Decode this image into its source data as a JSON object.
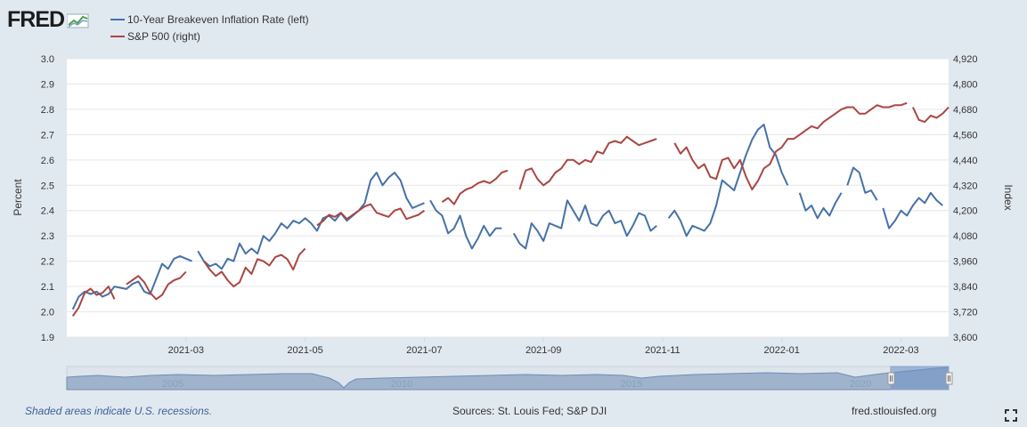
{
  "logo": {
    "text": "FRED"
  },
  "footer": {
    "recession_note": "Shaded areas indicate U.S. recessions.",
    "sources": "Sources: St. Louis Fed; S&P DJI",
    "site": "fred.stlouisfed.org"
  },
  "chart_data": {
    "type": "line",
    "title": "",
    "xlabel": "",
    "ylabel_left": "Percent",
    "ylabel_right": "Index",
    "x_tick_labels": [
      "2021-03",
      "2021-05",
      "2021-07",
      "2021-09",
      "2021-11",
      "2022-01",
      "2022-03"
    ],
    "x_tick_months": [
      2,
      4,
      6,
      8,
      10,
      12,
      14
    ],
    "x_range_months": [
      0,
      14.8
    ],
    "y_left": {
      "ticks": [
        "3.0",
        "2.9",
        "2.8",
        "2.7",
        "2.6",
        "2.5",
        "2.4",
        "2.3",
        "2.2",
        "2.1",
        "2.0",
        "1.9"
      ],
      "range": [
        1.9,
        3.0
      ]
    },
    "y_right": {
      "ticks": [
        "4,920",
        "4,800",
        "4,680",
        "4,560",
        "4,440",
        "4,320",
        "4,200",
        "4,080",
        "3,960",
        "3,840",
        "3,720",
        "3,600"
      ],
      "range": [
        3600,
        4920
      ]
    },
    "grid": true,
    "legend_position": "top-left",
    "colors": {
      "breakeven": "#4572a7",
      "sp500": "#aa4643"
    },
    "navigator": {
      "labels": [
        "2005",
        "2010",
        "2015",
        "2020"
      ]
    },
    "series": [
      {
        "name": "10-Year Breakeven Inflation Rate (left)",
        "axis": "left",
        "points": [
          [
            0.1,
            2.01
          ],
          [
            0.2,
            2.06
          ],
          [
            0.3,
            2.08
          ],
          [
            0.4,
            2.07
          ],
          [
            0.5,
            2.08
          ],
          [
            0.6,
            2.06
          ],
          [
            0.7,
            2.07
          ],
          [
            0.8,
            2.1
          ],
          [
            1.0,
            2.09
          ],
          [
            1.1,
            2.11
          ],
          [
            1.2,
            2.12
          ],
          [
            1.3,
            2.08
          ],
          [
            1.4,
            2.07
          ],
          [
            1.5,
            2.13
          ],
          [
            1.6,
            2.19
          ],
          [
            1.7,
            2.17
          ],
          [
            1.8,
            2.21
          ],
          [
            1.9,
            2.22
          ],
          [
            2.0,
            2.21
          ],
          [
            2.1,
            2.2
          ],
          null,
          [
            2.2,
            2.24
          ],
          [
            2.3,
            2.2
          ],
          [
            2.4,
            2.18
          ],
          [
            2.5,
            2.19
          ],
          [
            2.6,
            2.17
          ],
          [
            2.7,
            2.21
          ],
          [
            2.8,
            2.2
          ],
          [
            2.9,
            2.27
          ],
          [
            3.0,
            2.23
          ],
          [
            3.1,
            2.25
          ],
          [
            3.2,
            2.23
          ],
          [
            3.3,
            2.3
          ],
          [
            3.4,
            2.28
          ],
          [
            3.5,
            2.31
          ],
          [
            3.6,
            2.35
          ],
          [
            3.7,
            2.33
          ],
          [
            3.8,
            2.36
          ],
          [
            3.9,
            2.35
          ],
          [
            4.0,
            2.37
          ],
          [
            4.1,
            2.35
          ],
          [
            4.2,
            2.32
          ],
          [
            4.3,
            2.37
          ],
          [
            4.4,
            2.38
          ],
          [
            4.5,
            2.36
          ],
          [
            4.6,
            2.39
          ],
          [
            4.7,
            2.36
          ],
          [
            4.8,
            2.38
          ],
          [
            4.9,
            2.4
          ],
          [
            5.0,
            2.43
          ],
          [
            5.1,
            2.52
          ],
          [
            5.2,
            2.55
          ],
          [
            5.3,
            2.5
          ],
          [
            5.4,
            2.53
          ],
          [
            5.5,
            2.55
          ],
          [
            5.6,
            2.52
          ],
          [
            5.7,
            2.45
          ],
          [
            5.8,
            2.41
          ],
          [
            5.9,
            2.42
          ],
          [
            6.0,
            2.43
          ],
          null,
          [
            6.1,
            2.44
          ],
          [
            6.2,
            2.4
          ],
          [
            6.3,
            2.38
          ],
          [
            6.4,
            2.31
          ],
          [
            6.5,
            2.33
          ],
          [
            6.6,
            2.38
          ],
          [
            6.7,
            2.3
          ],
          [
            6.8,
            2.25
          ],
          [
            6.9,
            2.29
          ],
          [
            7.0,
            2.34
          ],
          [
            7.1,
            2.3
          ],
          [
            7.2,
            2.33
          ],
          [
            7.3,
            2.33
          ],
          null,
          [
            7.5,
            2.31
          ],
          [
            7.6,
            2.27
          ],
          [
            7.7,
            2.25
          ],
          [
            7.8,
            2.35
          ],
          [
            7.9,
            2.32
          ],
          [
            8.0,
            2.28
          ],
          [
            8.1,
            2.35
          ],
          [
            8.2,
            2.34
          ],
          [
            8.3,
            2.33
          ],
          [
            8.4,
            2.44
          ],
          [
            8.5,
            2.4
          ],
          [
            8.6,
            2.36
          ],
          [
            8.7,
            2.42
          ],
          [
            8.8,
            2.35
          ],
          [
            8.9,
            2.34
          ],
          [
            9.0,
            2.38
          ],
          [
            9.1,
            2.4
          ],
          [
            9.2,
            2.35
          ],
          [
            9.3,
            2.36
          ],
          [
            9.4,
            2.3
          ],
          [
            9.5,
            2.34
          ],
          [
            9.6,
            2.39
          ],
          [
            9.7,
            2.38
          ],
          [
            9.8,
            2.32
          ],
          [
            9.9,
            2.34
          ],
          null,
          [
            10.1,
            2.37
          ],
          [
            10.2,
            2.4
          ],
          [
            10.3,
            2.36
          ],
          [
            10.4,
            2.3
          ],
          [
            10.5,
            2.34
          ],
          [
            10.6,
            2.33
          ],
          [
            10.7,
            2.32
          ],
          [
            10.8,
            2.35
          ],
          [
            10.9,
            2.42
          ],
          [
            11.0,
            2.52
          ],
          [
            11.1,
            2.5
          ],
          [
            11.2,
            2.48
          ],
          [
            11.3,
            2.55
          ],
          [
            11.4,
            2.62
          ],
          [
            11.5,
            2.68
          ],
          [
            11.6,
            2.72
          ],
          [
            11.7,
            2.74
          ],
          [
            11.8,
            2.65
          ],
          [
            11.9,
            2.62
          ],
          [
            12.0,
            2.55
          ],
          [
            12.1,
            2.5
          ],
          null,
          [
            12.3,
            2.47
          ],
          [
            12.4,
            2.4
          ],
          [
            12.5,
            2.42
          ],
          [
            12.6,
            2.37
          ],
          [
            12.7,
            2.41
          ],
          [
            12.8,
            2.38
          ],
          [
            12.9,
            2.43
          ],
          [
            13.0,
            2.47
          ],
          null,
          [
            13.1,
            2.5
          ],
          [
            13.2,
            2.57
          ],
          [
            13.3,
            2.55
          ],
          [
            13.4,
            2.47
          ],
          [
            13.5,
            2.48
          ],
          [
            13.6,
            2.44
          ],
          null,
          [
            13.7,
            2.41
          ],
          [
            13.8,
            2.33
          ],
          [
            13.9,
            2.36
          ],
          [
            14.0,
            2.4
          ],
          [
            14.1,
            2.38
          ],
          [
            14.2,
            2.42
          ],
          [
            14.3,
            2.45
          ],
          [
            14.4,
            2.43
          ],
          [
            14.5,
            2.47
          ],
          [
            14.6,
            2.44
          ],
          [
            14.7,
            2.42
          ]
        ]
      },
      {
        "name": "S&P 500 (right)",
        "axis": "right",
        "points": [
          [
            0.1,
            3700
          ],
          [
            0.2,
            3740
          ],
          [
            0.3,
            3810
          ],
          [
            0.4,
            3830
          ],
          [
            0.5,
            3800
          ],
          [
            0.6,
            3810
          ],
          [
            0.7,
            3840
          ],
          [
            0.8,
            3780
          ],
          null,
          [
            1.0,
            3850
          ],
          [
            1.1,
            3870
          ],
          [
            1.2,
            3890
          ],
          [
            1.3,
            3860
          ],
          [
            1.4,
            3810
          ],
          [
            1.5,
            3780
          ],
          [
            1.6,
            3800
          ],
          [
            1.7,
            3850
          ],
          [
            1.8,
            3870
          ],
          [
            1.9,
            3880
          ],
          [
            2.0,
            3910
          ],
          null,
          [
            2.3,
            3960
          ],
          [
            2.4,
            3920
          ],
          [
            2.5,
            3890
          ],
          [
            2.6,
            3910
          ],
          [
            2.7,
            3870
          ],
          [
            2.8,
            3840
          ],
          [
            2.9,
            3860
          ],
          [
            3.0,
            3930
          ],
          [
            3.1,
            3900
          ],
          [
            3.2,
            3970
          ],
          [
            3.3,
            3960
          ],
          [
            3.4,
            3940
          ],
          [
            3.5,
            3980
          ],
          [
            3.6,
            3990
          ],
          [
            3.7,
            3970
          ],
          [
            3.8,
            3920
          ],
          [
            3.9,
            3990
          ],
          [
            4.0,
            4020
          ],
          null,
          [
            4.2,
            4130
          ],
          [
            4.3,
            4150
          ],
          [
            4.4,
            4180
          ],
          [
            4.5,
            4170
          ],
          [
            4.6,
            4190
          ],
          [
            4.7,
            4160
          ],
          [
            4.8,
            4180
          ],
          [
            4.9,
            4200
          ],
          [
            5.0,
            4220
          ],
          [
            5.1,
            4230
          ],
          [
            5.2,
            4190
          ],
          [
            5.3,
            4180
          ],
          [
            5.4,
            4170
          ],
          [
            5.5,
            4200
          ],
          [
            5.6,
            4210
          ],
          [
            5.7,
            4160
          ],
          [
            5.8,
            4170
          ],
          [
            5.9,
            4180
          ],
          [
            6.0,
            4200
          ],
          null,
          [
            6.3,
            4240
          ],
          [
            6.4,
            4260
          ],
          [
            6.5,
            4230
          ],
          [
            6.6,
            4280
          ],
          [
            6.7,
            4300
          ],
          [
            6.8,
            4310
          ],
          [
            6.9,
            4330
          ],
          [
            7.0,
            4340
          ],
          [
            7.1,
            4330
          ],
          [
            7.2,
            4350
          ],
          [
            7.3,
            4380
          ],
          [
            7.4,
            4390
          ],
          null,
          [
            7.6,
            4300
          ],
          [
            7.7,
            4390
          ],
          [
            7.8,
            4400
          ],
          [
            7.9,
            4350
          ],
          [
            8.0,
            4320
          ],
          [
            8.1,
            4340
          ],
          [
            8.2,
            4380
          ],
          [
            8.3,
            4400
          ],
          [
            8.4,
            4440
          ],
          [
            8.5,
            4440
          ],
          [
            8.6,
            4420
          ],
          [
            8.7,
            4440
          ],
          [
            8.8,
            4430
          ],
          [
            8.9,
            4480
          ],
          [
            9.0,
            4470
          ],
          [
            9.1,
            4520
          ],
          [
            9.2,
            4530
          ],
          [
            9.3,
            4520
          ],
          [
            9.4,
            4550
          ],
          [
            9.5,
            4530
          ],
          [
            9.6,
            4510
          ],
          [
            9.7,
            4520
          ],
          [
            9.8,
            4530
          ],
          [
            9.9,
            4540
          ],
          null,
          [
            10.2,
            4520
          ],
          [
            10.3,
            4470
          ],
          [
            10.4,
            4500
          ],
          [
            10.5,
            4440
          ],
          [
            10.6,
            4400
          ],
          [
            10.7,
            4420
          ],
          [
            10.8,
            4360
          ],
          [
            10.9,
            4350
          ],
          [
            11.0,
            4440
          ],
          [
            11.1,
            4450
          ],
          [
            11.2,
            4400
          ],
          [
            11.3,
            4440
          ],
          [
            11.4,
            4360
          ],
          [
            11.5,
            4300
          ],
          [
            11.6,
            4340
          ],
          [
            11.7,
            4400
          ],
          [
            11.8,
            4420
          ],
          [
            11.9,
            4480
          ],
          [
            12.0,
            4500
          ],
          [
            12.1,
            4540
          ],
          [
            12.2,
            4540
          ],
          [
            12.3,
            4560
          ],
          [
            12.4,
            4580
          ],
          [
            12.5,
            4600
          ],
          [
            12.6,
            4590
          ],
          [
            12.7,
            4620
          ],
          [
            12.8,
            4640
          ],
          [
            12.9,
            4660
          ],
          [
            13.0,
            4680
          ],
          [
            13.1,
            4690
          ],
          [
            13.2,
            4690
          ],
          [
            13.3,
            4660
          ],
          [
            13.4,
            4660
          ],
          [
            13.5,
            4680
          ],
          [
            13.6,
            4700
          ],
          [
            13.7,
            4690
          ],
          [
            13.8,
            4690
          ],
          [
            13.9,
            4700
          ],
          [
            14.0,
            4700
          ],
          [
            14.1,
            4710
          ],
          null,
          [
            14.2,
            4690
          ],
          [
            14.3,
            4630
          ],
          [
            14.4,
            4620
          ],
          [
            14.5,
            4650
          ],
          [
            14.6,
            4640
          ],
          [
            14.7,
            4660
          ],
          [
            14.8,
            4690
          ]
        ]
      }
    ]
  }
}
